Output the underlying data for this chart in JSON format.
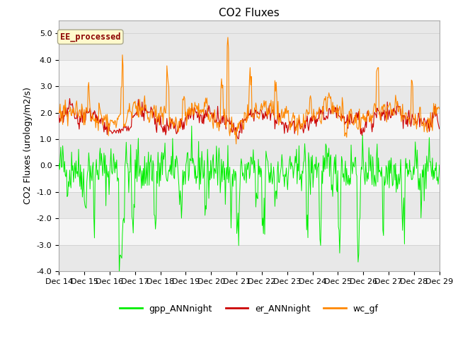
{
  "title": "CO2 Fluxes",
  "ylabel": "CO2 Fluxes (urology/m2/s)",
  "xlabel": "",
  "ylim": [
    -4.0,
    5.5
  ],
  "yticks": [
    -4.0,
    -3.0,
    -2.0,
    -1.0,
    0.0,
    1.0,
    2.0,
    3.0,
    4.0,
    5.0
  ],
  "n_points": 600,
  "start_day": 14,
  "end_day": 29,
  "color_gpp": "#00ee00",
  "color_er": "#cc0000",
  "color_wc": "#ff8800",
  "bg_bands": [
    {
      "ymin": -4.0,
      "ymax": -3.0,
      "color": "#e8e8e8"
    },
    {
      "ymin": -3.0,
      "ymax": -2.0,
      "color": "#f5f5f5"
    },
    {
      "ymin": -2.0,
      "ymax": -1.0,
      "color": "#e8e8e8"
    },
    {
      "ymin": -1.0,
      "ymax": 0.0,
      "color": "#f5f5f5"
    },
    {
      "ymin": 0.0,
      "ymax": 1.0,
      "color": "#e8e8e8"
    },
    {
      "ymin": 1.0,
      "ymax": 2.0,
      "color": "#f5f5f5"
    },
    {
      "ymin": 2.0,
      "ymax": 3.0,
      "color": "#e8e8e8"
    },
    {
      "ymin": 3.0,
      "ymax": 4.0,
      "color": "#f5f5f5"
    },
    {
      "ymin": 4.0,
      "ymax": 5.5,
      "color": "#e8e8e8"
    }
  ],
  "watermark": "EE_processed",
  "watermark_color": "#8b0000",
  "watermark_bg": "#fffacc",
  "legend_labels": [
    "gpp_ANNnight",
    "er_ANNnight",
    "wc_gf"
  ],
  "legend_colors": [
    "#00ee00",
    "#cc0000",
    "#ff8800"
  ],
  "title_fontsize": 11,
  "label_fontsize": 9,
  "tick_fontsize": 8
}
